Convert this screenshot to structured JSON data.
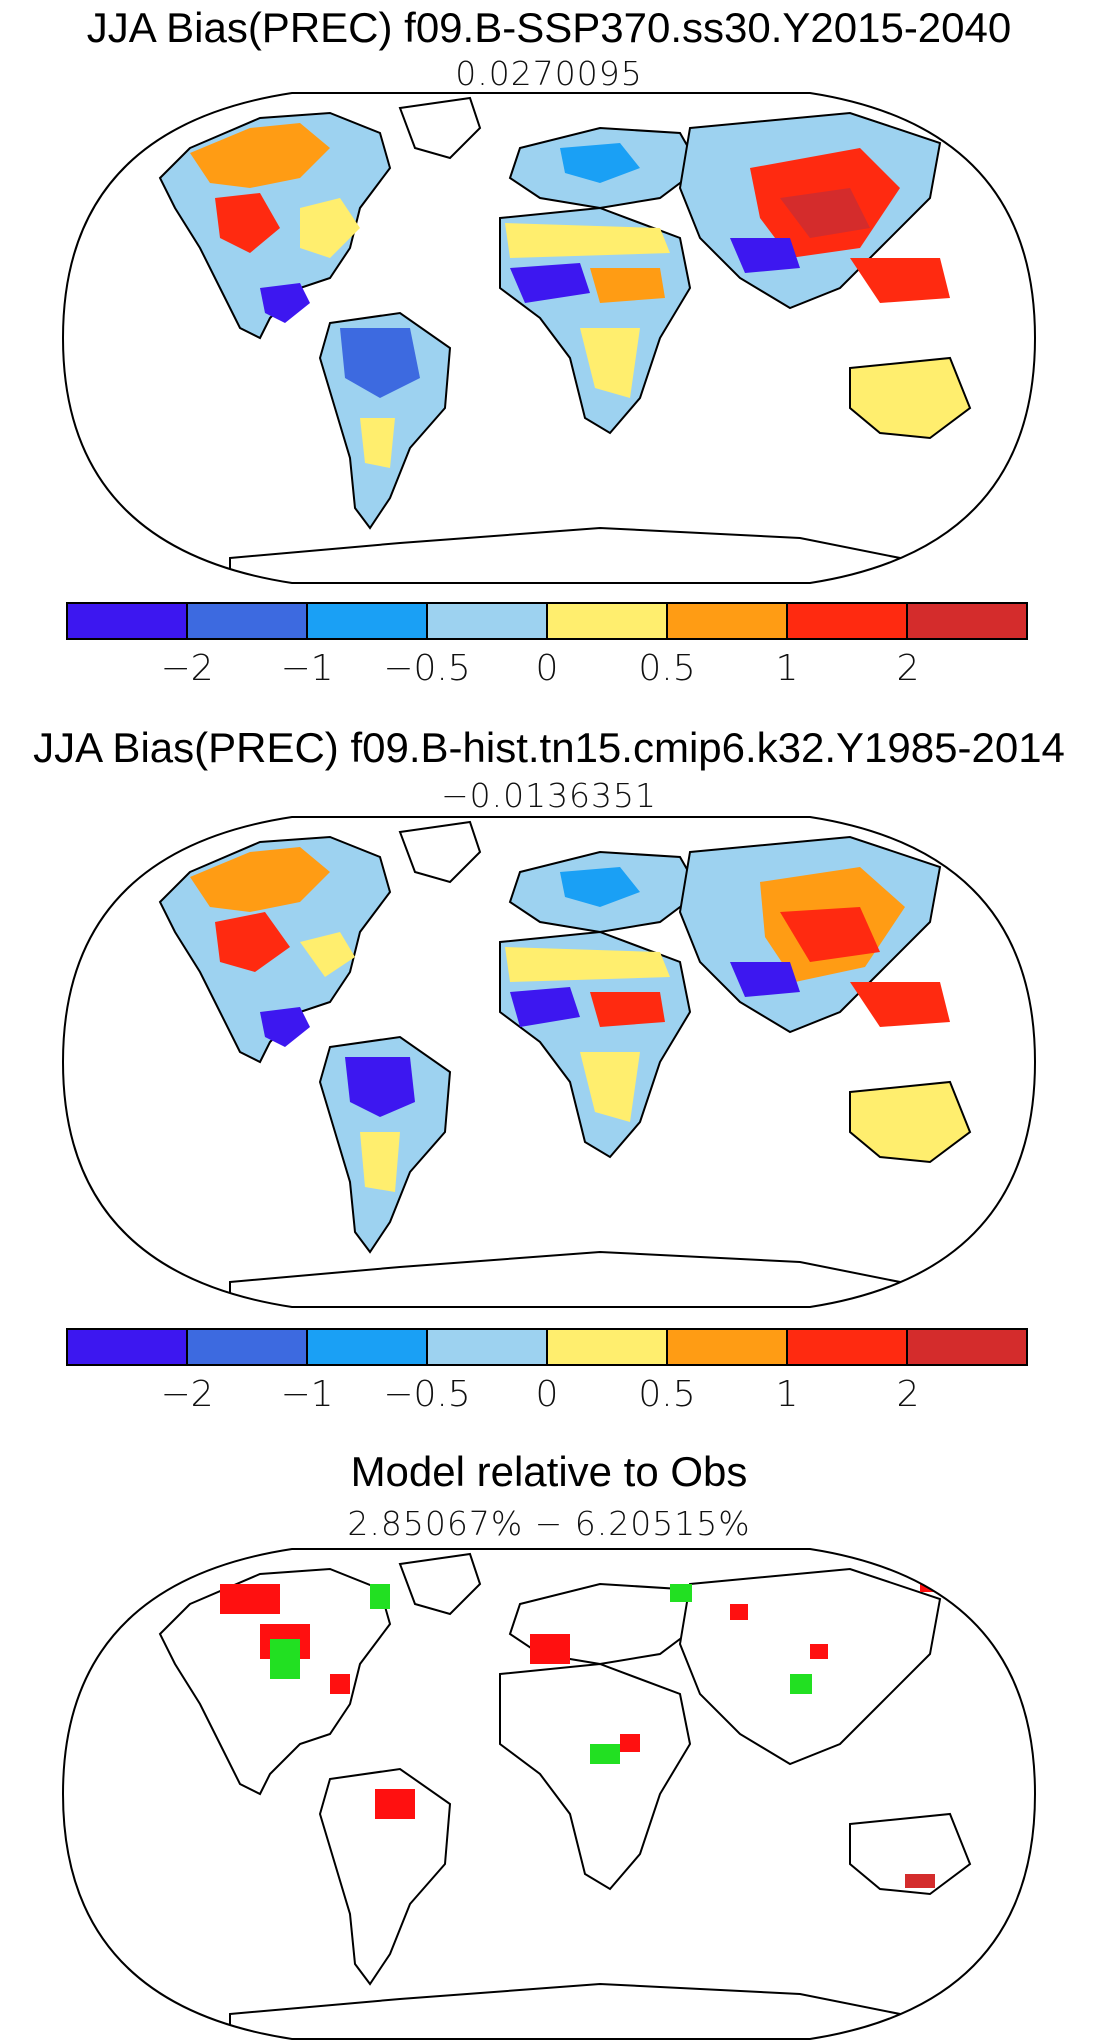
{
  "panels": [
    {
      "title": "JJA Bias(PREC) f09.B-SSP370.ss30.Y2015-2040",
      "subtitle": "0.0270095",
      "colorbar": {
        "colors": [
          "#3d17f0",
          "#3d6ae0",
          "#1aa0f5",
          "#9dd2f0",
          "#ffee6e",
          "#ff9c14",
          "#ff2a10",
          "#d42c2c"
        ],
        "labels": [
          "−2",
          "−1",
          "−0.5",
          "0",
          "0.5",
          "1",
          "2"
        ]
      }
    },
    {
      "title": "JJA Bias(PREC) f09.B-hist.tn15.cmip6.k32.Y1985-2014",
      "subtitle": "−0.0136351",
      "colorbar": {
        "colors": [
          "#3d17f0",
          "#3d6ae0",
          "#1aa0f5",
          "#9dd2f0",
          "#ffee6e",
          "#ff9c14",
          "#ff2a10",
          "#d42c2c"
        ],
        "labels": [
          "−2",
          "−1",
          "−0.5",
          "0",
          "0.5",
          "1",
          "2"
        ]
      }
    },
    {
      "title": "Model relative to Obs",
      "subtitle": "2.85067% − 6.20515%",
      "significance_colors": [
        "#ff1010",
        "#22e022"
      ]
    }
  ]
}
